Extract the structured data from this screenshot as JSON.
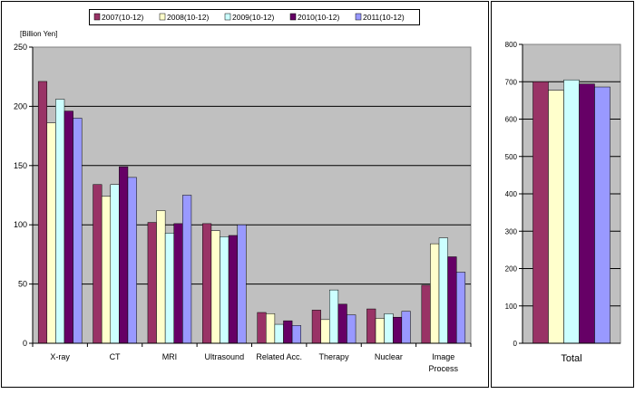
{
  "chart_data": [
    {
      "type": "bar",
      "ylabel": "[Billion Yen]",
      "ylim": [
        0,
        250
      ],
      "yticks": [
        0,
        50,
        100,
        150,
        200,
        250
      ],
      "grid": true,
      "legend": "top-center",
      "categories": [
        "X-ray",
        "CT",
        "MRI",
        "Ultrasound",
        "Related Acc.",
        "Therapy",
        "Nuclear",
        "Image Process"
      ],
      "series": [
        {
          "name": "2007(10-12)",
          "color": "#993366",
          "values": [
            221,
            134,
            102,
            101,
            26,
            28,
            29,
            49
          ]
        },
        {
          "name": "2008(10-12)",
          "color": "#ffffcc",
          "values": [
            186,
            124,
            112,
            95,
            25,
            20,
            21,
            84
          ]
        },
        {
          "name": "2009(10-12)",
          "color": "#ccffff",
          "values": [
            206,
            134,
            93,
            90,
            16,
            45,
            25,
            89
          ]
        },
        {
          "name": "2010(10-12)",
          "color": "#660066",
          "values": [
            196,
            149,
            101,
            91,
            19,
            33,
            22,
            73
          ]
        },
        {
          "name": "2011(10-12)",
          "color": "#9999ff",
          "values": [
            190,
            140,
            125,
            100,
            15,
            24,
            27,
            60
          ]
        }
      ]
    },
    {
      "type": "bar",
      "ylim": [
        0,
        800
      ],
      "yticks": [
        0,
        100,
        200,
        300,
        400,
        500,
        600,
        700,
        800
      ],
      "grid": true,
      "categories": [
        "Total"
      ],
      "series": [
        {
          "name": "2007(10-12)",
          "color": "#993366",
          "values": [
            700
          ]
        },
        {
          "name": "2008(10-12)",
          "color": "#ffffcc",
          "values": [
            677
          ]
        },
        {
          "name": "2009(10-12)",
          "color": "#ccffff",
          "values": [
            705
          ]
        },
        {
          "name": "2010(10-12)",
          "color": "#660066",
          "values": [
            694
          ]
        },
        {
          "name": "2011(10-12)",
          "color": "#9999ff",
          "values": [
            686
          ]
        }
      ]
    }
  ]
}
